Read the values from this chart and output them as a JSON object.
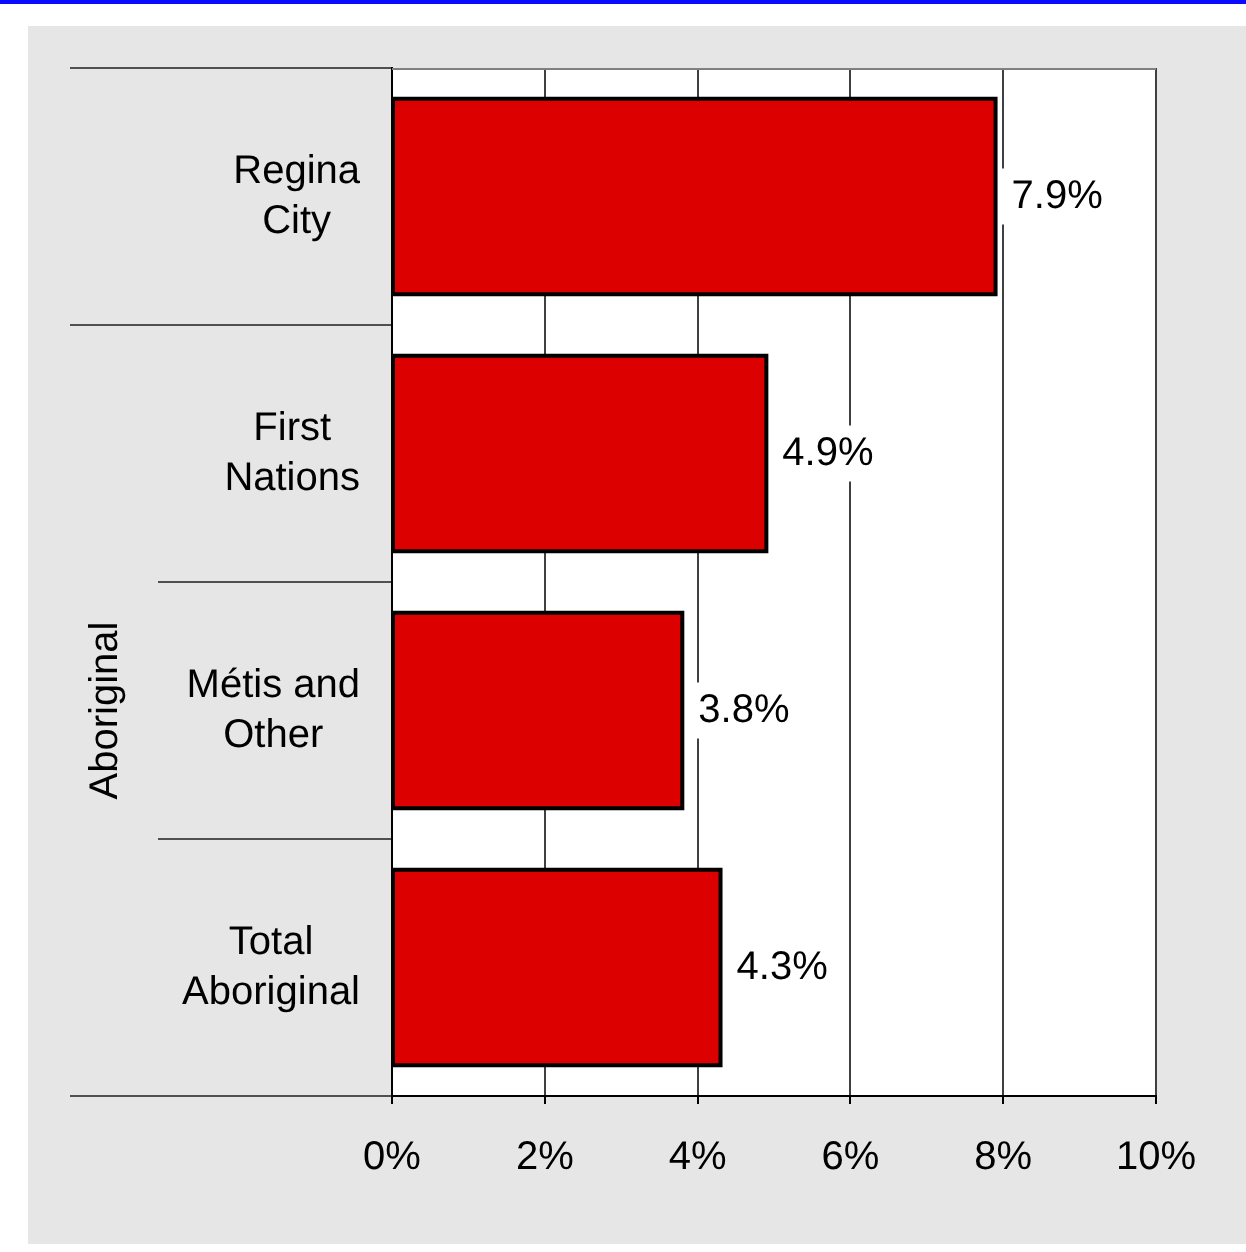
{
  "chart_data": {
    "type": "bar",
    "orientation": "horizontal",
    "categories": [
      "Regina City",
      "First Nations",
      "Métis and Other",
      "Total Aboriginal"
    ],
    "values": [
      7.9,
      4.9,
      3.8,
      4.3
    ],
    "color": "#dc0000",
    "value_labels": [
      "7.9%",
      "4.9%",
      "3.8%",
      "4.3%"
    ],
    "ylabel": "Aboriginal",
    "xlim": [
      0,
      10
    ],
    "xticks": [
      {
        "value": 0,
        "label": "0%"
      },
      {
        "value": 2,
        "label": "2%"
      },
      {
        "value": 4,
        "label": "4%"
      },
      {
        "value": 6,
        "label": "6%"
      },
      {
        "value": 8,
        "label": "8%"
      },
      {
        "value": 10,
        "label": "10%"
      }
    ],
    "grid": "x"
  }
}
